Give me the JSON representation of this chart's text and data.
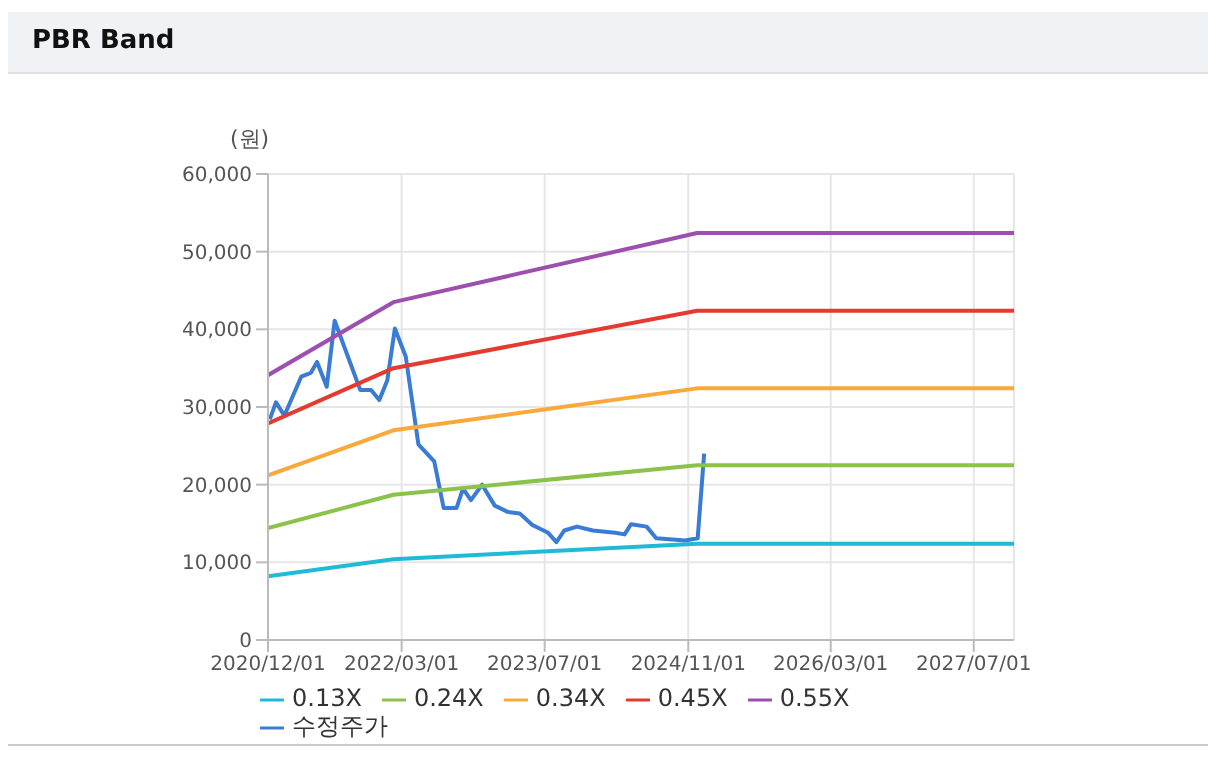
{
  "chart_data": {
    "type": "line",
    "title": "PBR Band",
    "ylabel": "(원)",
    "xlim": [
      "2020-12-01",
      "2027-11-15"
    ],
    "xticks": [
      {
        "value": "2020-12-01",
        "label": "2020/12/01"
      },
      {
        "value": "2022-03-01",
        "label": "2022/03/01"
      },
      {
        "value": "2023-07-01",
        "label": "2023/07/01"
      },
      {
        "value": "2024-11-01",
        "label": "2024/11/01"
      },
      {
        "value": "2026-03-01",
        "label": "2026/03/01"
      },
      {
        "value": "2027-07-01",
        "label": "2027/07/01"
      }
    ],
    "ylim": [
      0,
      60000
    ],
    "yticks": [
      {
        "value": 0,
        "label": "0"
      },
      {
        "value": 10000,
        "label": "10,000"
      },
      {
        "value": 20000,
        "label": "20,000"
      },
      {
        "value": 30000,
        "label": "30,000"
      },
      {
        "value": 40000,
        "label": "40,000"
      },
      {
        "value": 50000,
        "label": "50,000"
      },
      {
        "value": 60000,
        "label": "60,000"
      }
    ],
    "grid": true,
    "legend": "bottom",
    "marker": "none",
    "line_style": "solid",
    "series": [
      {
        "name": "수정주가",
        "color": "#3a7bd5",
        "x": [
          "2020-12-07",
          "2020-12-28",
          "2021-01-26",
          "2021-03-24",
          "2021-04-26",
          "2021-05-17",
          "2021-06-19",
          "2021-07-16",
          "2021-08-22",
          "2021-10-11",
          "2021-11-17",
          "2021-12-15",
          "2022-01-11",
          "2022-02-06",
          "2022-03-15",
          "2022-04-27",
          "2022-06-20",
          "2022-07-22",
          "2022-09-04",
          "2022-09-26",
          "2022-10-23",
          "2022-11-30",
          "2023-01-12",
          "2023-02-25",
          "2023-04-07",
          "2023-05-20",
          "2023-07-13",
          "2023-08-10",
          "2023-09-06",
          "2023-10-19",
          "2023-12-12",
          "2024-02-26",
          "2024-03-29",
          "2024-04-20",
          "2024-06-12",
          "2024-07-15",
          "2024-09-19",
          "2024-10-21",
          "2024-12-03",
          "2024-12-25"
        ],
        "values": [
          28400,
          30600,
          28900,
          33900,
          34400,
          35800,
          32600,
          41100,
          37300,
          32200,
          32200,
          30900,
          33400,
          40100,
          36500,
          25200,
          23000,
          17000,
          17000,
          19500,
          18000,
          20000,
          17300,
          16500,
          16300,
          14800,
          13800,
          12600,
          14100,
          14600,
          14100,
          13800,
          13600,
          14900,
          14600,
          13100,
          12900,
          12800,
          13100,
          24000
        ]
      },
      {
        "name": "0.13X",
        "color": "#1fbad6",
        "x": [
          "2020-12-01",
          "2022-02-01",
          "2024-12-01",
          "2027-11-15"
        ],
        "values": [
          8200,
          10400,
          12400,
          12400
        ]
      },
      {
        "name": "0.24X",
        "color": "#8bc34a",
        "x": [
          "2020-12-01",
          "2022-02-01",
          "2024-12-01",
          "2027-11-15"
        ],
        "values": [
          14400,
          18700,
          22500,
          22500
        ]
      },
      {
        "name": "0.34X",
        "color": "#f9a83a",
        "x": [
          "2020-12-01",
          "2022-02-01",
          "2024-12-01",
          "2027-11-15"
        ],
        "values": [
          21200,
          27000,
          32400,
          32400
        ]
      },
      {
        "name": "0.45X",
        "color": "#e53a2f",
        "x": [
          "2020-12-01",
          "2022-02-01",
          "2024-12-01",
          "2027-11-15"
        ],
        "values": [
          27900,
          35000,
          42400,
          42400
        ]
      },
      {
        "name": "0.55X",
        "color": "#9c4fae",
        "x": [
          "2020-12-01",
          "2022-02-01",
          "2024-12-01",
          "2027-11-15"
        ],
        "values": [
          34100,
          43500,
          52400,
          52400
        ]
      }
    ]
  }
}
